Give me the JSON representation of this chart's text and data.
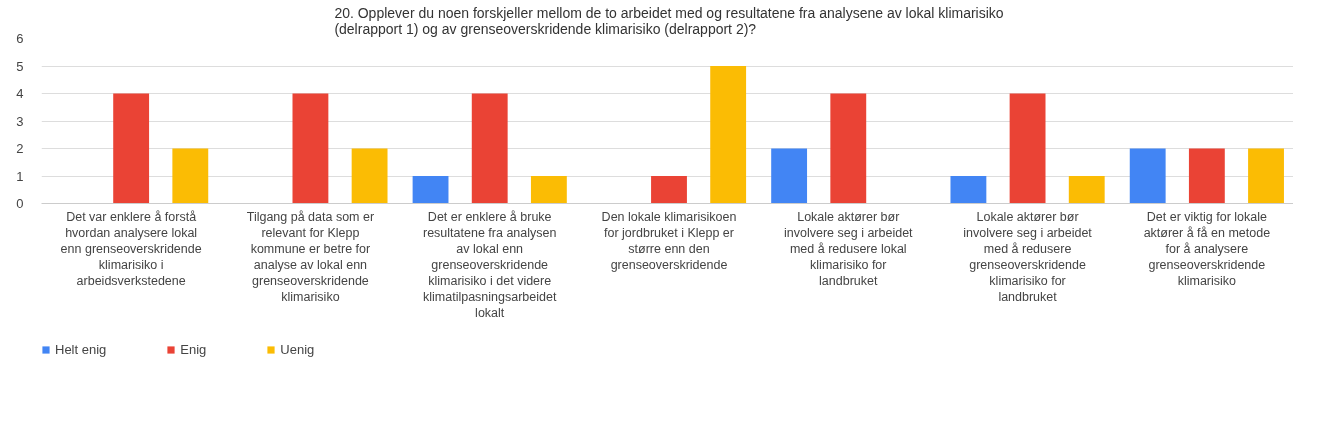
{
  "chart_data": {
    "type": "bar",
    "title": "20. Opplever du noen forskjeller mellom de to arbeidet med og resultatene fra analysene av lokal klimarisiko (delrapport 1) og av grenseoverskridende klimarisiko (delrapport 2)?",
    "categories": [
      "Det var enklere å forstå hvordan analysere lokal enn grenseoverskridende klimarisiko i arbeidsverkstedene",
      "Tilgang på data som er relevant for Klepp kommune er betre for analyse av lokal enn grenseoverskridende klimarisiko",
      "Det er enklere å bruke resultatene fra analysen av lokal enn grenseoverskridende klimarisiko i det videre klimatilpasningsarbeidet lokalt",
      "Den lokale klimarisikoen for jordbruket i Klepp er større enn den grenseoverskridende",
      "Lokale aktører bør involvere seg i arbeidet med å redusere lokal klimarisiko for landbruket",
      "Lokale aktører bør involvere seg i arbeidet med å redusere grenseoverskridende klimarisiko for landbruket",
      "Det er viktig for lokale aktører å få en metode for å analysere grenseoverskridende klimarisiko"
    ],
    "series": [
      {
        "name": "Helt enig",
        "color": "#4285f4",
        "values": [
          0,
          0,
          1,
          0,
          2,
          1,
          2
        ]
      },
      {
        "name": "Enig",
        "color": "#ea4335",
        "values": [
          4,
          4,
          4,
          1,
          4,
          4,
          2
        ]
      },
      {
        "name": "Uenig",
        "color": "#fbbc04",
        "values": [
          2,
          2,
          1,
          5,
          0,
          1,
          2
        ]
      }
    ],
    "ylim": [
      0,
      6
    ],
    "yticks": [
      0,
      1,
      2,
      3,
      4,
      5,
      6
    ],
    "grid": "y",
    "legend": "bottom left"
  }
}
